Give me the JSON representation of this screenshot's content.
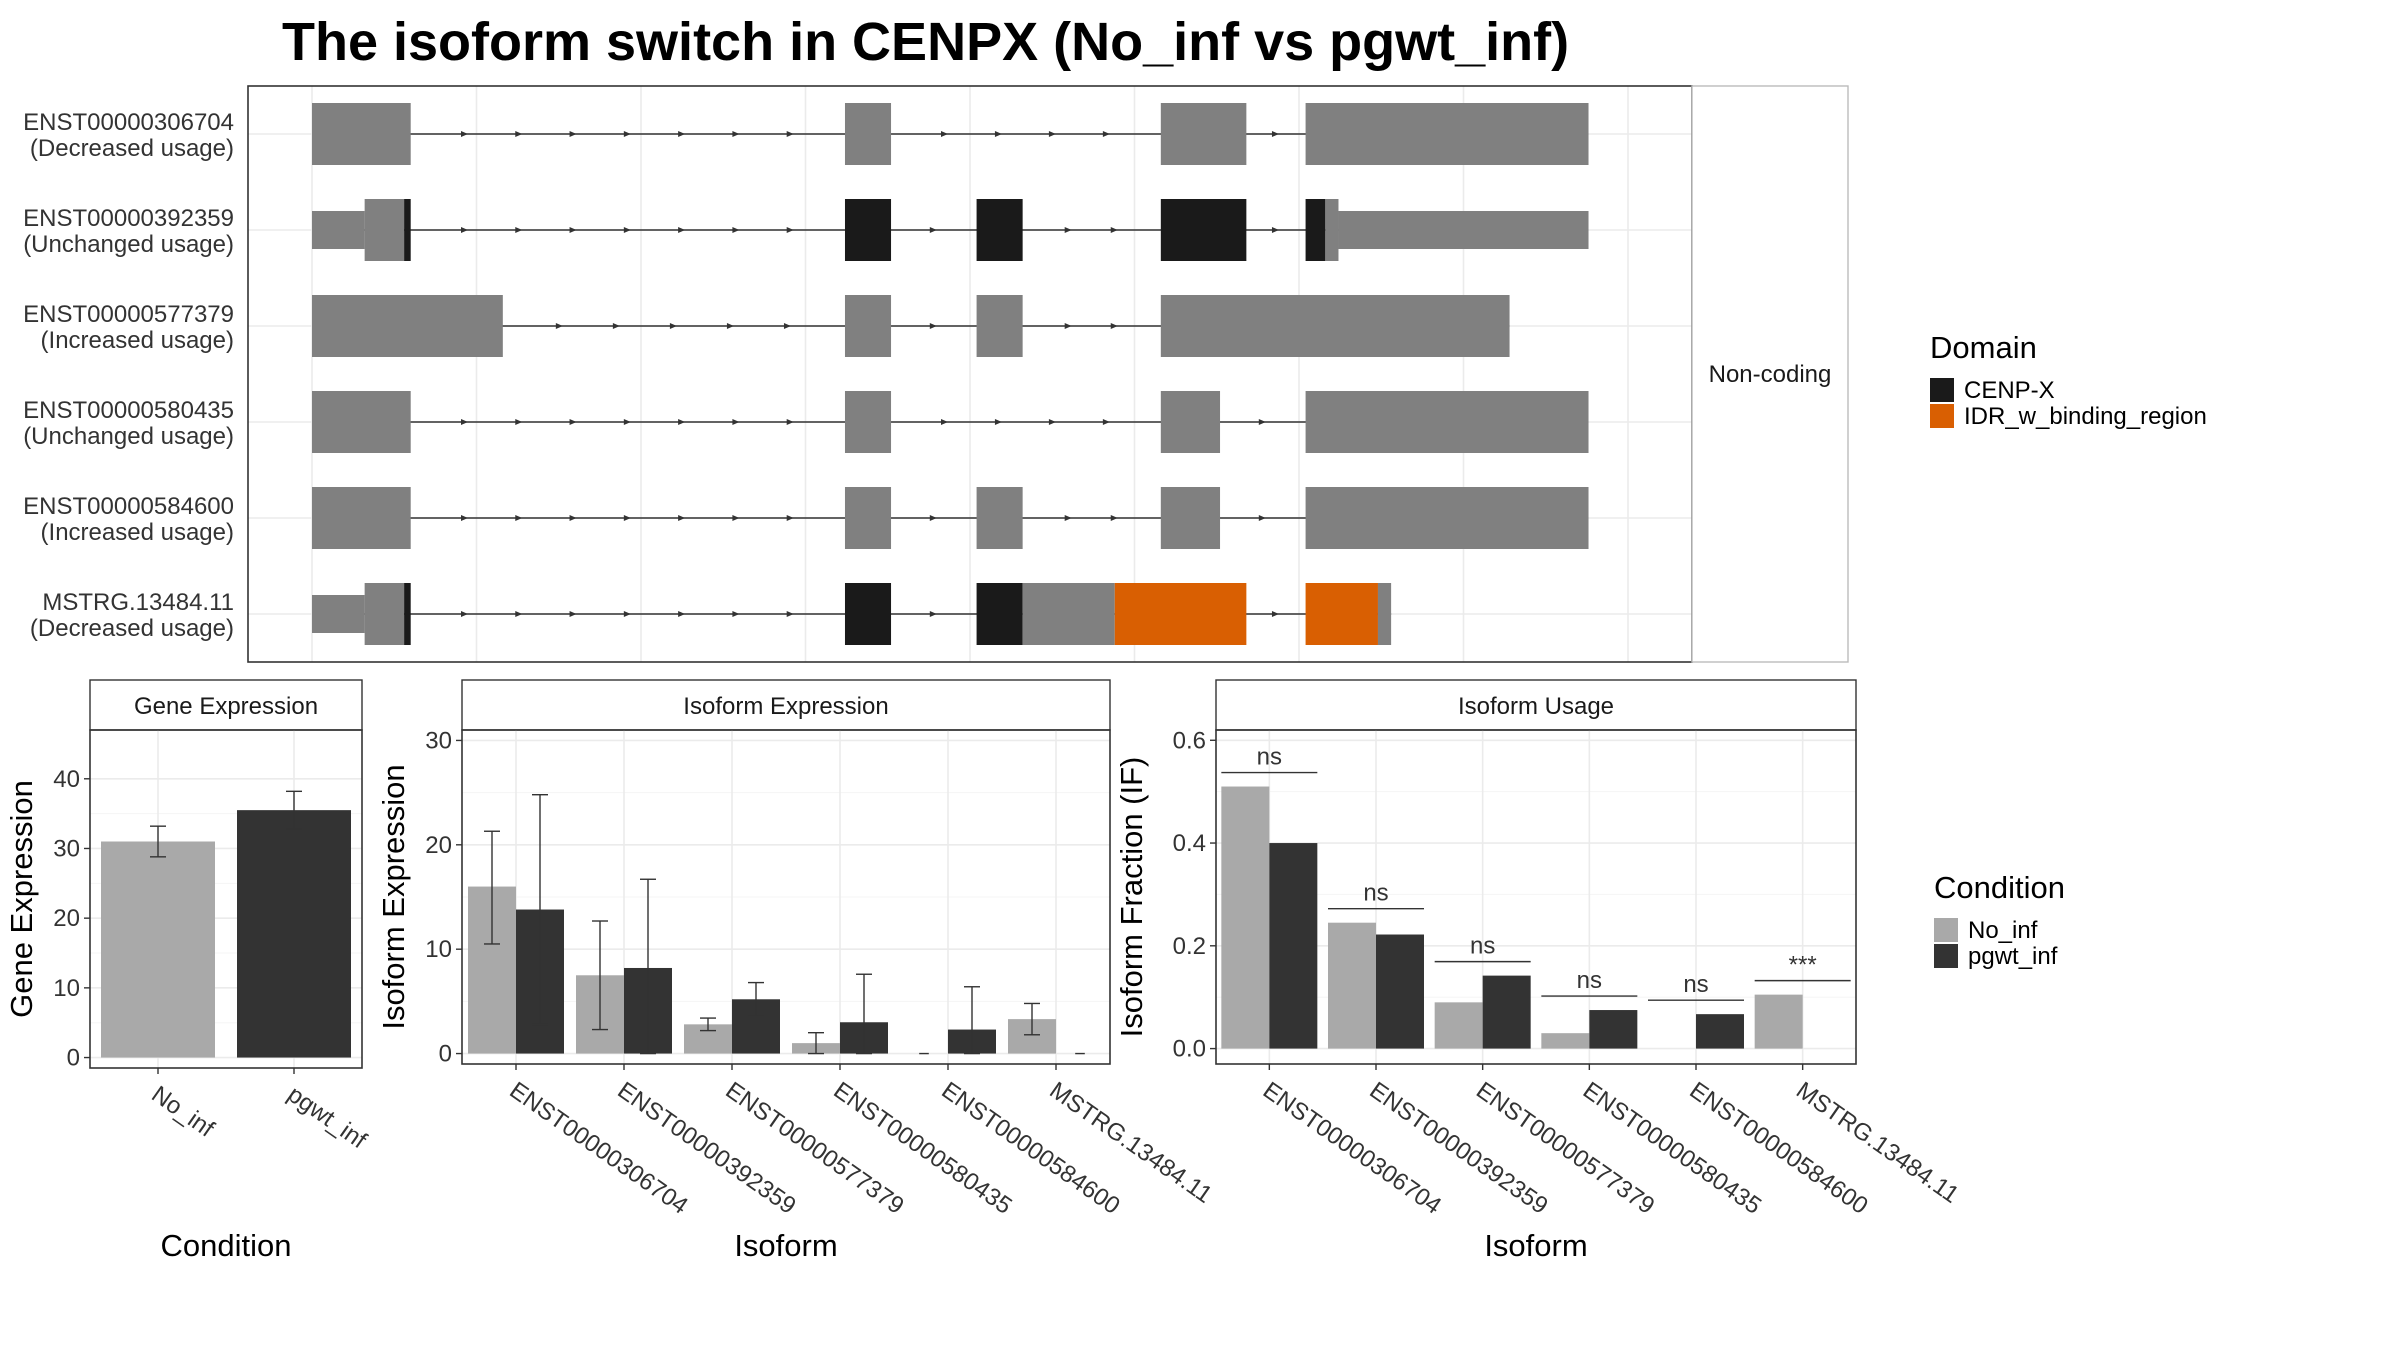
{
  "title": "The isoform switch in CENPX (No_inf vs pgwt_inf)",
  "colors": {
    "exon_noncoding": "#808080",
    "cenp_x": "#1a1a1a",
    "idr": "#d95f02",
    "no_inf": "#a9a9a9",
    "pgwt_inf": "#333333",
    "intron_line": "#333333"
  },
  "chart_data": [
    {
      "type": "gene-structure",
      "panel_strip": "Non-coding",
      "legend_title": "Domain",
      "legend": [
        {
          "name": "CENP-X",
          "color_key": "cenp_x"
        },
        {
          "name": "IDR_w_binding_region",
          "color_key": "idr"
        }
      ],
      "coordinate_range": [
        0,
        1000
      ],
      "transcripts": [
        {
          "name": "ENST00000306704",
          "usage": "(Decreased usage)",
          "span": [
            0,
            970
          ],
          "exons": [
            {
              "start": 0,
              "end": 75,
              "type": "noncoding"
            },
            {
              "start": 405,
              "end": 440,
              "type": "noncoding"
            },
            {
              "start": 645,
              "end": 710,
              "type": "noncoding"
            },
            {
              "start": 755,
              "end": 970,
              "type": "noncoding"
            }
          ]
        },
        {
          "name": "ENST00000392359",
          "usage": "(Unchanged usage)",
          "span": [
            0,
            970
          ],
          "exons": [
            {
              "start": 0,
              "end": 40,
              "type": "utr"
            },
            {
              "start": 40,
              "end": 70,
              "type": "noncoding"
            },
            {
              "start": 70,
              "end": 75,
              "type": "cenp_x"
            },
            {
              "start": 405,
              "end": 440,
              "type": "cenp_x"
            },
            {
              "start": 505,
              "end": 540,
              "type": "cenp_x"
            },
            {
              "start": 645,
              "end": 710,
              "type": "cenp_x"
            },
            {
              "start": 755,
              "end": 770,
              "type": "cenp_x"
            },
            {
              "start": 770,
              "end": 780,
              "type": "noncoding"
            },
            {
              "start": 780,
              "end": 970,
              "type": "utr"
            }
          ]
        },
        {
          "name": "ENST00000577379",
          "usage": "(Increased usage)",
          "span": [
            0,
            910
          ],
          "exons": [
            {
              "start": 0,
              "end": 145,
              "type": "noncoding"
            },
            {
              "start": 405,
              "end": 440,
              "type": "noncoding"
            },
            {
              "start": 505,
              "end": 540,
              "type": "noncoding"
            },
            {
              "start": 645,
              "end": 910,
              "type": "noncoding"
            }
          ]
        },
        {
          "name": "ENST00000580435",
          "usage": "(Unchanged usage)",
          "span": [
            0,
            970
          ],
          "exons": [
            {
              "start": 0,
              "end": 75,
              "type": "noncoding"
            },
            {
              "start": 405,
              "end": 440,
              "type": "noncoding"
            },
            {
              "start": 645,
              "end": 690,
              "type": "noncoding"
            },
            {
              "start": 755,
              "end": 970,
              "type": "noncoding"
            }
          ]
        },
        {
          "name": "ENST00000584600",
          "usage": "(Increased usage)",
          "span": [
            0,
            970
          ],
          "exons": [
            {
              "start": 0,
              "end": 75,
              "type": "noncoding"
            },
            {
              "start": 405,
              "end": 440,
              "type": "noncoding"
            },
            {
              "start": 505,
              "end": 540,
              "type": "noncoding"
            },
            {
              "start": 645,
              "end": 690,
              "type": "noncoding"
            },
            {
              "start": 755,
              "end": 970,
              "type": "noncoding"
            }
          ]
        },
        {
          "name": "MSTRG.13484.11",
          "usage": "(Decreased usage)",
          "span": [
            0,
            820
          ],
          "exons": [
            {
              "start": 0,
              "end": 40,
              "type": "utr"
            },
            {
              "start": 40,
              "end": 70,
              "type": "noncoding"
            },
            {
              "start": 70,
              "end": 75,
              "type": "cenp_x"
            },
            {
              "start": 405,
              "end": 440,
              "type": "cenp_x"
            },
            {
              "start": 505,
              "end": 540,
              "type": "cenp_x"
            },
            {
              "start": 540,
              "end": 610,
              "type": "noncoding"
            },
            {
              "start": 610,
              "end": 710,
              "type": "idr"
            },
            {
              "start": 755,
              "end": 810,
              "type": "idr"
            },
            {
              "start": 810,
              "end": 820,
              "type": "noncoding"
            }
          ]
        }
      ]
    },
    {
      "type": "bar",
      "strip": "Gene Expression",
      "xlabel": "Condition",
      "ylabel": "Gene Expression",
      "categories": [
        "No_inf",
        "pgwt_inf"
      ],
      "values": [
        31,
        35.5
      ],
      "errors": [
        [
          28.8,
          33.2
        ],
        [
          32.8,
          38.2
        ]
      ],
      "ylim": [
        -1.5,
        47
      ],
      "yticks": [
        0,
        10,
        20,
        30,
        40
      ]
    },
    {
      "type": "bar",
      "strip": "Isoform Expression",
      "xlabel": "Isoform",
      "ylabel": "Isoform Expression",
      "categories": [
        "ENST00000306704",
        "ENST00000392359",
        "ENST00000577379",
        "ENST00000580435",
        "ENST00000584600",
        "MSTRG.13484.11"
      ],
      "series": [
        {
          "name": "No_inf",
          "values": [
            16,
            7.5,
            2.8,
            1.0,
            0,
            3.3
          ],
          "errors": [
            [
              10.5,
              21.3
            ],
            [
              2.3,
              12.7
            ],
            [
              2.2,
              3.4
            ],
            [
              0,
              2.0
            ],
            [
              0,
              0
            ],
            [
              1.8,
              4.8
            ]
          ]
        },
        {
          "name": "pgwt_inf",
          "values": [
            13.8,
            8.2,
            5.2,
            3.0,
            2.3,
            0
          ],
          "errors": [
            [
              2.8,
              24.8
            ],
            [
              0,
              16.7
            ],
            [
              3.6,
              6.8
            ],
            [
              0,
              7.6
            ],
            [
              0,
              6.4
            ],
            [
              0,
              0
            ]
          ]
        }
      ],
      "ylim": [
        -1,
        31
      ],
      "yticks": [
        0,
        10,
        20,
        30
      ]
    },
    {
      "type": "bar",
      "strip": "Isoform Usage",
      "xlabel": "Isoform",
      "ylabel": "Isoform Fraction (IF)",
      "categories": [
        "ENST00000306704",
        "ENST00000392359",
        "ENST00000577379",
        "ENST00000580435",
        "ENST00000584600",
        "MSTRG.13484.11"
      ],
      "series": [
        {
          "name": "No_inf",
          "values": [
            0.51,
            0.245,
            0.09,
            0.03,
            0,
            0.105
          ]
        },
        {
          "name": "pgwt_inf",
          "values": [
            0.4,
            0.222,
            0.142,
            0.075,
            0.067,
            0
          ]
        }
      ],
      "significance": [
        "ns",
        "ns",
        "ns",
        "ns",
        "ns",
        "***"
      ],
      "ylim": [
        -0.03,
        0.62
      ],
      "yticks": [
        0.0,
        0.2,
        0.4,
        0.6
      ],
      "ytick_labels": [
        "0.0",
        "0.2",
        "0.4",
        "0.6"
      ]
    }
  ],
  "condition_legend": {
    "title": "Condition",
    "items": [
      {
        "name": "No_inf",
        "color_key": "no_inf"
      },
      {
        "name": "pgwt_inf",
        "color_key": "pgwt_inf"
      }
    ]
  }
}
